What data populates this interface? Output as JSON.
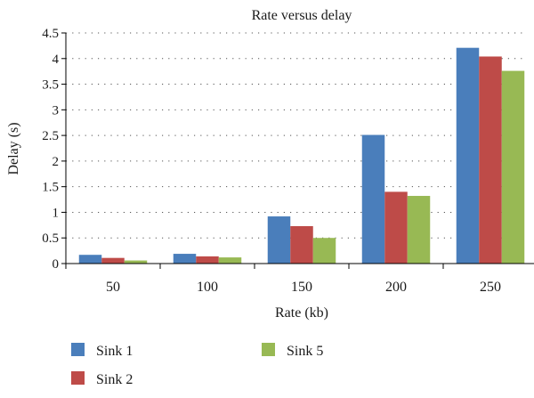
{
  "chart_data": {
    "type": "bar",
    "title": "Rate versus delay",
    "xlabel": "Rate (kb)",
    "ylabel": "Delay (s)",
    "categories": [
      "50",
      "100",
      "150",
      "200",
      "250"
    ],
    "ylim": [
      0,
      4.5
    ],
    "yticks": [
      0,
      0.5,
      1,
      1.5,
      2,
      2.5,
      3,
      3.5,
      4,
      4.5
    ],
    "ytick_labels": [
      "0",
      "0.5",
      "1",
      "1.5",
      "2",
      "2.5",
      "3",
      "3.5",
      "4",
      "4.5"
    ],
    "grid": "horizontal-dotted",
    "legend_position": "bottom-left",
    "series": [
      {
        "name": "Sink 1",
        "color": "#4a7ebb",
        "values": [
          0.17,
          0.19,
          0.92,
          2.51,
          4.21
        ]
      },
      {
        "name": "Sink 2",
        "color": "#be4b48",
        "values": [
          0.11,
          0.14,
          0.73,
          1.4,
          4.04
        ]
      },
      {
        "name": "Sink 5",
        "color": "#98b954",
        "values": [
          0.06,
          0.12,
          0.5,
          1.32,
          3.76
        ]
      }
    ]
  }
}
